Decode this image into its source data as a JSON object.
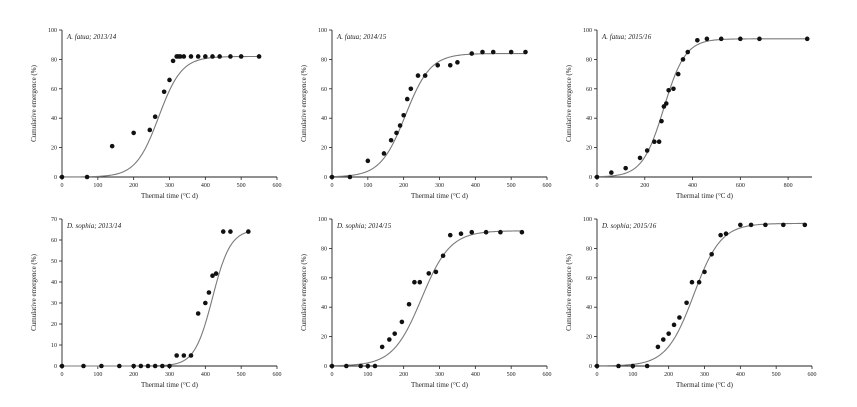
{
  "chart_data": [
    {
      "type": "scatter",
      "title": "A. fatua; 2013/14",
      "xlabel": "Thermal time (°C d)",
      "ylabel": "Cumulative emergence (%)",
      "xlim": [
        0,
        600
      ],
      "ylim": [
        0,
        100
      ],
      "xticks": [
        0,
        100,
        200,
        300,
        400,
        500,
        600
      ],
      "yticks": [
        0,
        20,
        40,
        60,
        80,
        100
      ],
      "fit": {
        "max": 82,
        "x50": 270,
        "slope": 32
      },
      "series": [
        {
          "x": [
            0,
            70,
            140,
            200,
            245,
            260,
            285,
            300,
            310,
            320,
            325,
            330,
            340,
            360,
            380,
            400,
            420,
            440,
            470,
            500,
            550
          ],
          "y": [
            0,
            0,
            21,
            30,
            32,
            41,
            58,
            66,
            79,
            82,
            82,
            82,
            82,
            82,
            82,
            82,
            82,
            82,
            82,
            82,
            82
          ]
        }
      ]
    },
    {
      "type": "scatter",
      "title": "A. fatua; 2014/15",
      "xlabel": "Thermal time (°C d)",
      "ylabel": "Cumulative emergence (%)",
      "xlim": [
        0,
        600
      ],
      "ylim": [
        0,
        100
      ],
      "xticks": [
        0,
        100,
        200,
        300,
        400,
        500,
        600
      ],
      "yticks": [
        0,
        20,
        40,
        60,
        80,
        100
      ],
      "fit": {
        "max": 84,
        "x50": 205,
        "slope": 35
      },
      "series": [
        {
          "x": [
            0,
            50,
            100,
            145,
            165,
            180,
            190,
            200,
            210,
            220,
            240,
            260,
            295,
            330,
            350,
            390,
            420,
            450,
            500,
            540
          ],
          "y": [
            0,
            0,
            11,
            16,
            25,
            30,
            35,
            42,
            53,
            60,
            69,
            69,
            76,
            76,
            78,
            84,
            85,
            85,
            85,
            85
          ]
        }
      ]
    },
    {
      "type": "scatter",
      "title": "A. fatua; 2015/16",
      "xlabel": "Thermal time (°C d)",
      "ylabel": "Cumulative emergence (%)",
      "xlim": [
        0,
        900
      ],
      "ylim": [
        0,
        100
      ],
      "xticks": [
        0,
        200,
        400,
        600,
        800
      ],
      "yticks": [
        0,
        20,
        40,
        60,
        80,
        100
      ],
      "fit": {
        "max": 94,
        "x50": 280,
        "slope": 45
      },
      "series": [
        {
          "x": [
            0,
            60,
            120,
            180,
            210,
            240,
            260,
            270,
            280,
            290,
            300,
            320,
            340,
            360,
            380,
            420,
            460,
            520,
            600,
            680,
            880
          ],
          "y": [
            0,
            3,
            6,
            13,
            18,
            24,
            24,
            38,
            48,
            50,
            59,
            60,
            70,
            80,
            85,
            93,
            94,
            94,
            94,
            94,
            94
          ]
        }
      ]
    },
    {
      "type": "scatter",
      "title": "D. sophia; 2013/14",
      "xlabel": "Thermal time (°C d)",
      "ylabel": "Cumulative emergence (%)",
      "xlim": [
        0,
        600
      ],
      "ylim": [
        0,
        70
      ],
      "xticks": [
        0,
        100,
        200,
        300,
        400,
        500,
        600
      ],
      "yticks": [
        0,
        10,
        20,
        30,
        40,
        50,
        60,
        70
      ],
      "fit": {
        "max": 65,
        "x50": 420,
        "slope": 25
      },
      "series": [
        {
          "x": [
            0,
            60,
            110,
            160,
            200,
            220,
            240,
            260,
            280,
            300,
            320,
            340,
            360,
            380,
            400,
            410,
            420,
            430,
            450,
            470,
            520
          ],
          "y": [
            0,
            0,
            0,
            0,
            0,
            0,
            0,
            0,
            0,
            0,
            5,
            5,
            5,
            25,
            30,
            35,
            43,
            44,
            64,
            64,
            64
          ]
        }
      ]
    },
    {
      "type": "scatter",
      "title": "D. sophia; 2014/15",
      "xlabel": "Thermal time (°C d)",
      "ylabel": "Cumulative emergence (%)",
      "xlim": [
        0,
        600
      ],
      "ylim": [
        0,
        100
      ],
      "xticks": [
        0,
        100,
        200,
        300,
        400,
        500,
        600
      ],
      "yticks": [
        0,
        20,
        40,
        60,
        80,
        100
      ],
      "fit": {
        "max": 92,
        "x50": 250,
        "slope": 40
      },
      "series": [
        {
          "x": [
            0,
            40,
            80,
            100,
            120,
            140,
            160,
            175,
            195,
            215,
            230,
            245,
            270,
            290,
            310,
            330,
            360,
            390,
            430,
            470,
            530
          ],
          "y": [
            0,
            0,
            0,
            0,
            0,
            13,
            18,
            22,
            30,
            42,
            57,
            57,
            63,
            64,
            75,
            89,
            90,
            91,
            91,
            91,
            91
          ]
        }
      ]
    },
    {
      "type": "scatter",
      "title": "D. sophia; 2015/16",
      "xlabel": "Thermal time (°C d)",
      "ylabel": "Cumulative emergence (%)",
      "xlim": [
        0,
        600
      ],
      "ylim": [
        0,
        100
      ],
      "xticks": [
        0,
        100,
        200,
        300,
        400,
        500,
        600
      ],
      "yticks": [
        0,
        20,
        40,
        60,
        80,
        100
      ],
      "fit": {
        "max": 97,
        "x50": 270,
        "slope": 38
      },
      "series": [
        {
          "x": [
            0,
            60,
            100,
            140,
            170,
            185,
            200,
            215,
            230,
            250,
            265,
            285,
            300,
            320,
            345,
            360,
            400,
            430,
            470,
            520,
            580
          ],
          "y": [
            0,
            0,
            0,
            0,
            13,
            18,
            22,
            28,
            33,
            43,
            57,
            57,
            64,
            76,
            89,
            90,
            96,
            96,
            96,
            96,
            96
          ]
        }
      ]
    }
  ]
}
